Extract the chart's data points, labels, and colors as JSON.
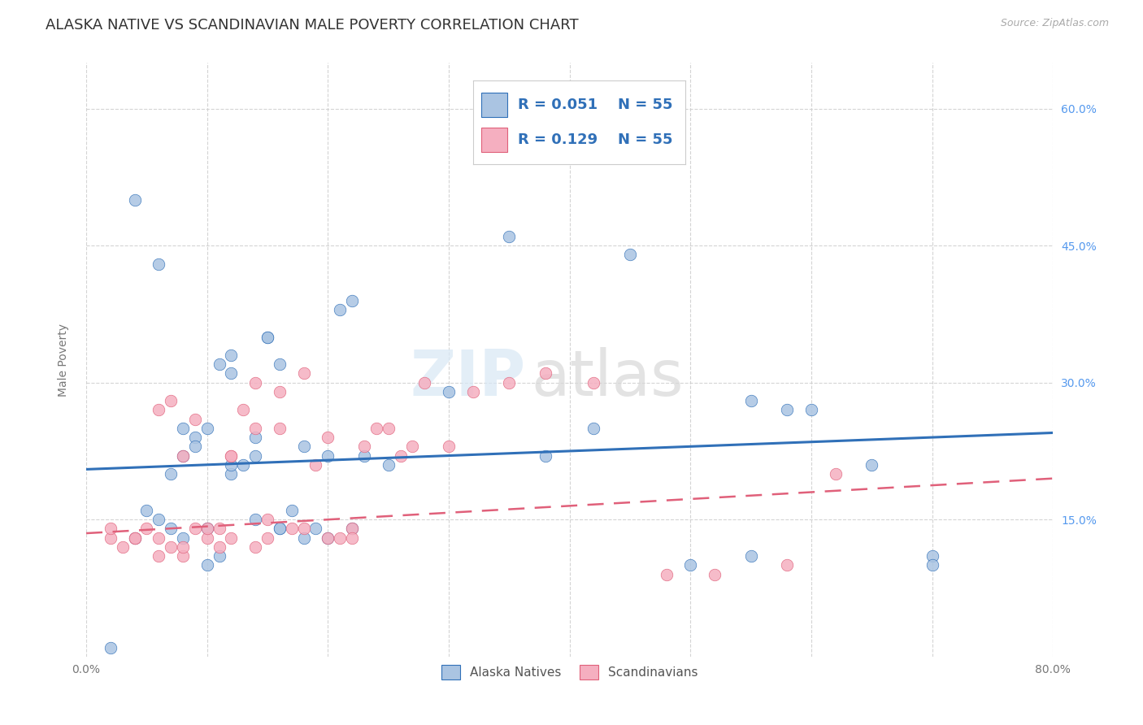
{
  "title": "ALASKA NATIVE VS SCANDINAVIAN MALE POVERTY CORRELATION CHART",
  "source": "Source: ZipAtlas.com",
  "ylabel": "Male Poverty",
  "xlim": [
    0.0,
    0.8
  ],
  "ylim": [
    0.0,
    0.65
  ],
  "xtick_positions": [
    0.0,
    0.1,
    0.2,
    0.3,
    0.4,
    0.5,
    0.6,
    0.7,
    0.8
  ],
  "xticklabels": [
    "0.0%",
    "",
    "",
    "",
    "",
    "",
    "",
    "",
    "80.0%"
  ],
  "ytick_positions": [
    0.15,
    0.3,
    0.45,
    0.6
  ],
  "ytick_labels": [
    "15.0%",
    "30.0%",
    "45.0%",
    "60.0%"
  ],
  "watermark_zip": "ZIP",
  "watermark_atlas": "atlas",
  "blue_scatter_x": [
    0.02,
    0.04,
    0.05,
    0.06,
    0.07,
    0.07,
    0.08,
    0.08,
    0.09,
    0.09,
    0.1,
    0.1,
    0.11,
    0.11,
    0.12,
    0.12,
    0.12,
    0.13,
    0.14,
    0.14,
    0.15,
    0.15,
    0.16,
    0.16,
    0.17,
    0.18,
    0.19,
    0.2,
    0.21,
    0.22,
    0.22,
    0.23,
    0.25,
    0.3,
    0.35,
    0.38,
    0.42,
    0.45,
    0.5,
    0.55,
    0.58,
    0.6,
    0.65,
    0.7,
    0.04,
    0.06,
    0.08,
    0.1,
    0.12,
    0.14,
    0.16,
    0.18,
    0.2,
    0.55,
    0.7
  ],
  "blue_scatter_y": [
    0.01,
    0.13,
    0.16,
    0.15,
    0.14,
    0.2,
    0.13,
    0.22,
    0.24,
    0.23,
    0.1,
    0.14,
    0.11,
    0.32,
    0.2,
    0.31,
    0.33,
    0.21,
    0.15,
    0.24,
    0.35,
    0.35,
    0.32,
    0.14,
    0.16,
    0.13,
    0.14,
    0.13,
    0.38,
    0.39,
    0.14,
    0.22,
    0.21,
    0.29,
    0.46,
    0.22,
    0.25,
    0.44,
    0.1,
    0.28,
    0.27,
    0.27,
    0.21,
    0.11,
    0.5,
    0.43,
    0.25,
    0.25,
    0.21,
    0.22,
    0.14,
    0.23,
    0.22,
    0.11,
    0.1
  ],
  "pink_scatter_x": [
    0.02,
    0.03,
    0.04,
    0.05,
    0.06,
    0.06,
    0.07,
    0.07,
    0.08,
    0.08,
    0.09,
    0.09,
    0.1,
    0.11,
    0.11,
    0.12,
    0.12,
    0.13,
    0.14,
    0.14,
    0.15,
    0.15,
    0.16,
    0.17,
    0.18,
    0.19,
    0.2,
    0.21,
    0.22,
    0.23,
    0.24,
    0.25,
    0.26,
    0.27,
    0.28,
    0.3,
    0.32,
    0.35,
    0.38,
    0.42,
    0.48,
    0.52,
    0.58,
    0.62,
    0.02,
    0.04,
    0.06,
    0.08,
    0.1,
    0.12,
    0.14,
    0.16,
    0.18,
    0.2,
    0.22
  ],
  "pink_scatter_y": [
    0.13,
    0.12,
    0.13,
    0.14,
    0.11,
    0.13,
    0.12,
    0.28,
    0.11,
    0.12,
    0.14,
    0.26,
    0.13,
    0.12,
    0.14,
    0.13,
    0.22,
    0.27,
    0.25,
    0.12,
    0.13,
    0.15,
    0.29,
    0.14,
    0.31,
    0.21,
    0.24,
    0.13,
    0.14,
    0.23,
    0.25,
    0.25,
    0.22,
    0.23,
    0.3,
    0.23,
    0.29,
    0.3,
    0.31,
    0.3,
    0.09,
    0.09,
    0.1,
    0.2,
    0.14,
    0.13,
    0.27,
    0.22,
    0.14,
    0.22,
    0.3,
    0.25,
    0.14,
    0.13,
    0.13
  ],
  "blue_color": "#aac4e2",
  "pink_color": "#f5afc0",
  "blue_line_color": "#3070b8",
  "pink_line_color": "#e0607a",
  "grid_color": "#d0d0d0",
  "background_color": "#ffffff",
  "title_fontsize": 13,
  "axis_label_fontsize": 10,
  "tick_fontsize": 10,
  "right_tick_color": "#5599ee",
  "legend_text_color": "#3070b8"
}
